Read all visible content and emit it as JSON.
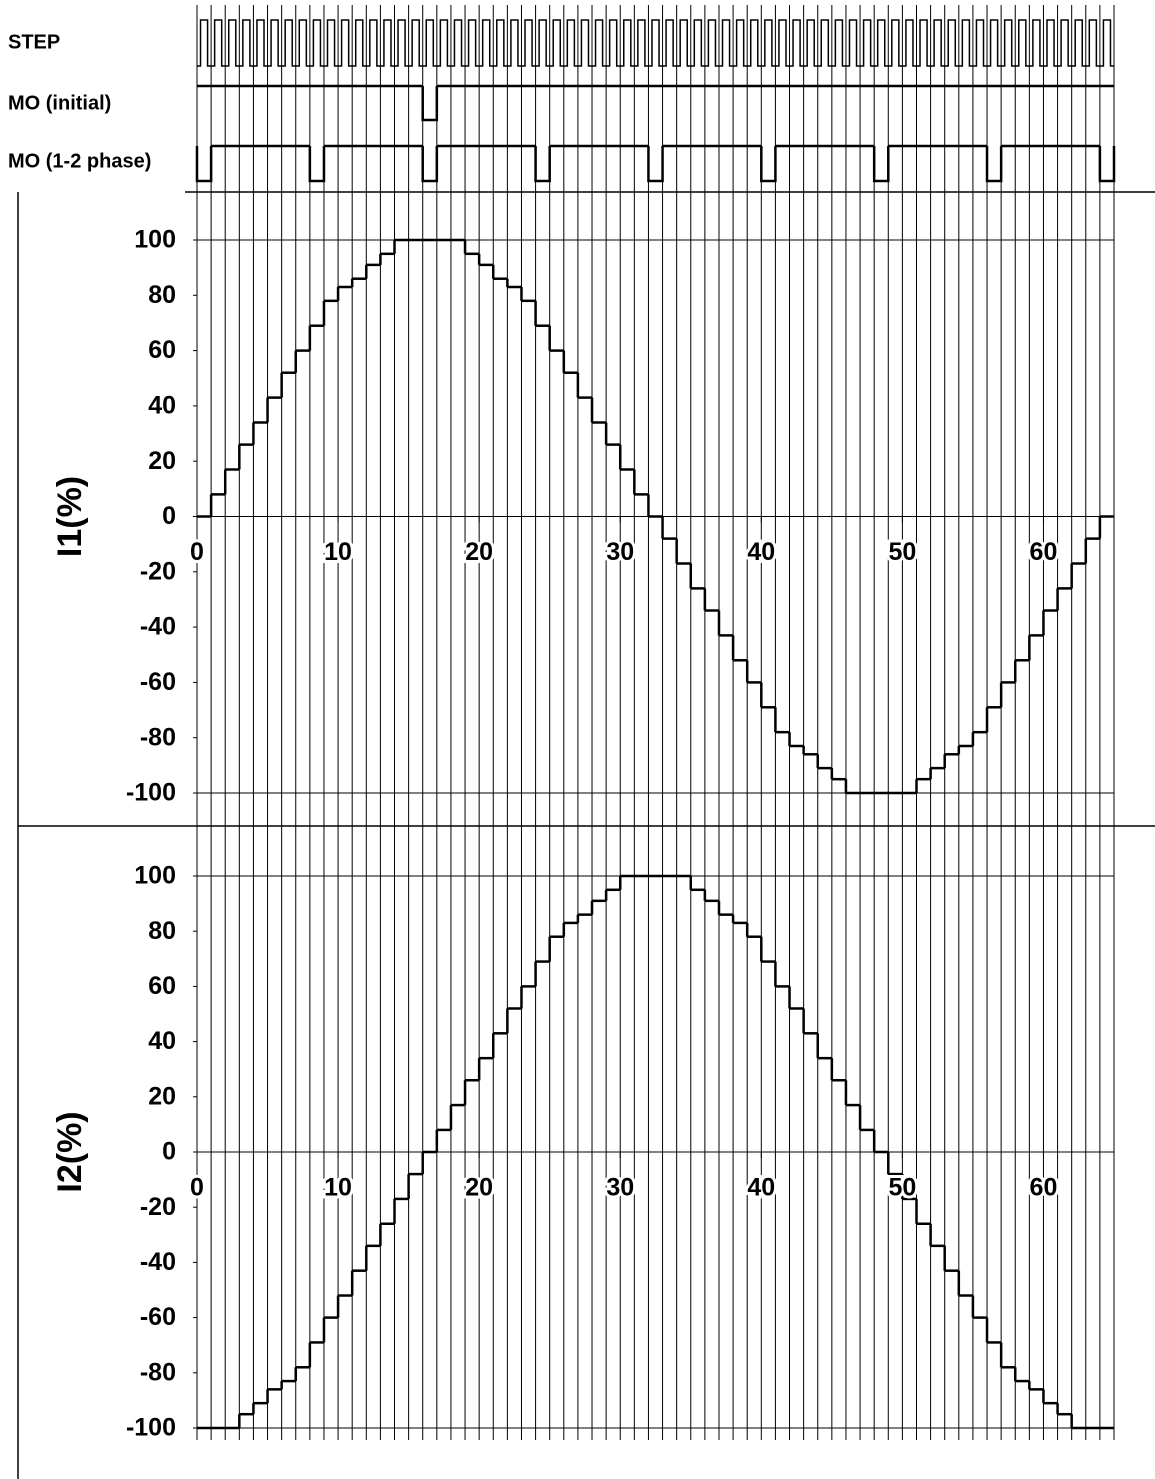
{
  "signals": [
    {
      "name": "STEP"
    },
    {
      "name": "MO (initial)",
      "low_steps": [
        16
      ]
    },
    {
      "name": "MO (1-2 phase)",
      "low_steps": [
        0,
        8,
        16,
        24,
        32,
        40,
        48,
        56,
        64
      ]
    }
  ],
  "chart_data": [
    {
      "type": "step",
      "y_label": "I1(%)",
      "x": [
        0,
        1,
        2,
        3,
        4,
        5,
        6,
        7,
        8,
        9,
        10,
        11,
        12,
        13,
        14,
        15,
        16,
        17,
        18,
        19,
        20,
        21,
        22,
        23,
        24,
        25,
        26,
        27,
        28,
        29,
        30,
        31,
        32,
        33,
        34,
        35,
        36,
        37,
        38,
        39,
        40,
        41,
        42,
        43,
        44,
        45,
        46,
        47,
        48,
        49,
        50,
        51,
        52,
        53,
        54,
        55,
        56,
        57,
        58,
        59,
        60,
        61,
        62,
        63,
        64
      ],
      "values": [
        0,
        8,
        17,
        26,
        34,
        43,
        52,
        60,
        69,
        78,
        83,
        86,
        91,
        95,
        100,
        100,
        100,
        100,
        100,
        95,
        91,
        86,
        83,
        78,
        69,
        60,
        52,
        43,
        34,
        26,
        17,
        8,
        0,
        -8,
        -17,
        -26,
        -34,
        -43,
        -52,
        -60,
        -69,
        -78,
        -83,
        -86,
        -91,
        -95,
        -100,
        -100,
        -100,
        -100,
        -100,
        -95,
        -91,
        -86,
        -83,
        -78,
        -69,
        -60,
        -52,
        -43,
        -34,
        -26,
        -17,
        -8,
        0
      ],
      "xlim": [
        0,
        65
      ],
      "xticks": [
        0,
        10,
        20,
        30,
        40,
        50,
        60
      ],
      "ylim": [
        -100,
        100
      ],
      "yticks": [
        100,
        80,
        60,
        40,
        20,
        0,
        -20,
        -40,
        -60,
        -80,
        -100
      ]
    },
    {
      "type": "step",
      "y_label": "I2(%)",
      "x": [
        0,
        1,
        2,
        3,
        4,
        5,
        6,
        7,
        8,
        9,
        10,
        11,
        12,
        13,
        14,
        15,
        16,
        17,
        18,
        19,
        20,
        21,
        22,
        23,
        24,
        25,
        26,
        27,
        28,
        29,
        30,
        31,
        32,
        33,
        34,
        35,
        36,
        37,
        38,
        39,
        40,
        41,
        42,
        43,
        44,
        45,
        46,
        47,
        48,
        49,
        50,
        51,
        52,
        53,
        54,
        55,
        56,
        57,
        58,
        59,
        60,
        61,
        62,
        63,
        64
      ],
      "values": [
        -100,
        -100,
        -100,
        -95,
        -91,
        -86,
        -83,
        -78,
        -69,
        -60,
        -52,
        -43,
        -34,
        -26,
        -17,
        -8,
        0,
        8,
        17,
        26,
        34,
        43,
        52,
        60,
        69,
        78,
        83,
        86,
        91,
        95,
        100,
        100,
        100,
        100,
        100,
        95,
        91,
        86,
        83,
        78,
        69,
        60,
        52,
        43,
        34,
        26,
        17,
        8,
        0,
        -8,
        -17,
        -26,
        -34,
        -43,
        -52,
        -60,
        -69,
        -78,
        -83,
        -86,
        -91,
        -95,
        -100,
        -100,
        -100
      ],
      "xlim": [
        0,
        65
      ],
      "xticks": [
        0,
        10,
        20,
        30,
        40,
        50,
        60
      ],
      "ylim": [
        -100,
        100
      ],
      "yticks": [
        100,
        80,
        60,
        40,
        20,
        0,
        -20,
        -40,
        -60,
        -80,
        -100
      ]
    }
  ]
}
